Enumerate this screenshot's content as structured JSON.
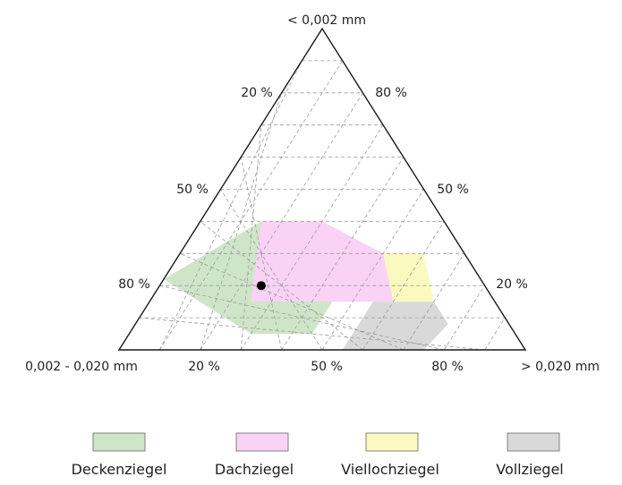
{
  "diagram": {
    "corner_labels": {
      "top": "< 0,002 mm",
      "left": "0,002 - 0,020 mm",
      "right": "> 0,020 mm"
    },
    "tick_labels": {
      "left_edge": [
        "20 %",
        "50 %",
        "80 %"
      ],
      "right_edge": [
        "80 %",
        "50 %",
        "20 %"
      ],
      "bottom_edge": [
        "20 %",
        "50 %",
        "80 %"
      ]
    },
    "regions": [
      {
        "name": "Deckenziegel",
        "color": "#cfe5c8",
        "polygon": [
          [
            0.22,
            0.78,
            0.0
          ],
          [
            0.05,
            0.65,
            0.3
          ],
          [
            0.05,
            0.5,
            0.45
          ],
          [
            0.22,
            0.33,
            0.45
          ],
          [
            0.4,
            0.3,
            0.3
          ],
          [
            0.4,
            0.45,
            0.15
          ]
        ]
      },
      {
        "name": "Dachziegel",
        "color": "#fad2f6",
        "polygon": [
          [
            0.4,
            0.3,
            0.3
          ],
          [
            0.4,
            0.45,
            0.15
          ],
          [
            0.15,
            0.6,
            0.25
          ],
          [
            0.15,
            0.25,
            0.6
          ],
          [
            0.25,
            0.15,
            0.6
          ]
        ]
      },
      {
        "name": "Viellochziegel",
        "color": "#fafac0",
        "polygon": [
          [
            0.15,
            0.25,
            0.6
          ],
          [
            0.3,
            0.2,
            0.5
          ],
          [
            0.3,
            0.1,
            0.6
          ],
          [
            0.15,
            0.15,
            0.7
          ]
        ]
      },
      {
        "name": "Vollziegel",
        "color": "#d9d9d9",
        "polygon": [
          [
            0.15,
            0.3,
            0.55
          ],
          [
            0.15,
            0.15,
            0.7
          ],
          [
            0.08,
            0.15,
            0.77
          ],
          [
            0.0,
            0.25,
            0.75
          ],
          [
            0.0,
            0.45,
            0.55
          ]
        ]
      }
    ],
    "sample_point": [
      0.2,
      0.55,
      0.25
    ]
  },
  "legend": [
    {
      "label": "Deckenziegel",
      "color": "#cfe5c8"
    },
    {
      "label": "Dachziegel",
      "color": "#fad2f6"
    },
    {
      "label": "Viellochziegel",
      "color": "#fafac0"
    },
    {
      "label": "Vollziegel",
      "color": "#d9d9d9"
    }
  ]
}
